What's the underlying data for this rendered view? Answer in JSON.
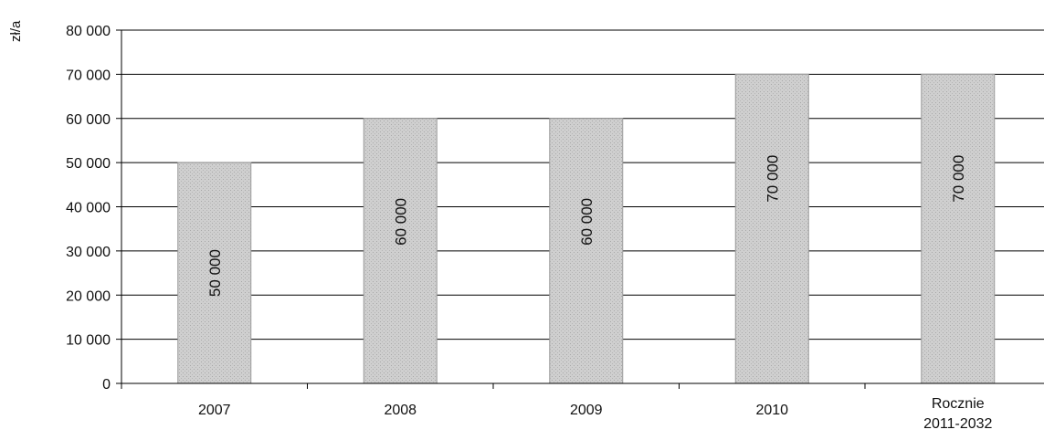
{
  "chart_data": {
    "type": "bar",
    "categories": [
      "2007",
      "2008",
      "2009",
      "2010",
      "Rocznie\n2011-2032"
    ],
    "values": [
      50000,
      60000,
      60000,
      70000,
      70000
    ],
    "data_labels": [
      "50 000",
      "60 000",
      "60 000",
      "70 000",
      "70 000"
    ],
    "title": "",
    "xlabel": "",
    "ylabel": "zł/a",
    "ylim": [
      0,
      80000
    ],
    "yticks": [
      0,
      10000,
      20000,
      30000,
      40000,
      50000,
      60000,
      70000,
      80000
    ],
    "ytick_labels": [
      "0",
      "10 000",
      "20 000",
      "30 000",
      "40 000",
      "50 000",
      "60 000",
      "70 000",
      "80 000"
    ],
    "grid": true,
    "legend": "none",
    "colors": {
      "bar_fill": "#cfcfcf",
      "bar_edge": "#9a9a9a",
      "grid": "#000000"
    }
  }
}
